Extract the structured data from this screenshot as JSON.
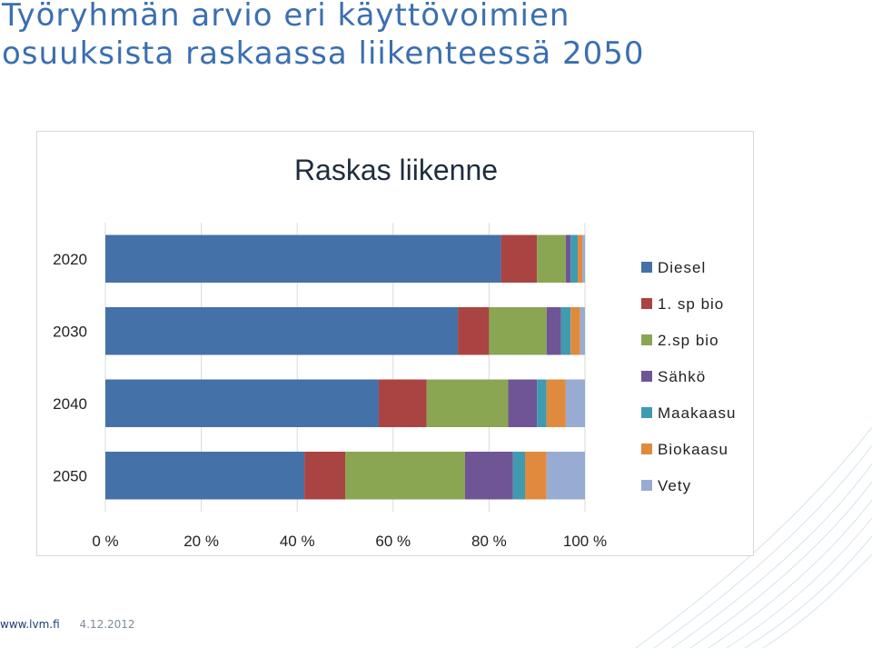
{
  "slide": {
    "title_line1": "Työryhmän arvio eri käyttövoimien",
    "title_line2": "osuuksista raskaassa liikenteessä 2050",
    "title_color": "#3b6fb0"
  },
  "footer": {
    "url": "www.lvm.fi",
    "date": "4.12.2012"
  },
  "chart_data": {
    "type": "bar",
    "orientation": "horizontal",
    "stacked": "percent",
    "title": "Raskas liikenne",
    "categories": [
      "2020",
      "2030",
      "2040",
      "2050"
    ],
    "series": [
      {
        "name": "Diesel",
        "color": "#4471a8",
        "values": [
          82.5,
          73.5,
          57.0,
          41.5
        ]
      },
      {
        "name": "1. sp bio",
        "color": "#a94442",
        "values": [
          7.5,
          6.5,
          10.0,
          8.5
        ]
      },
      {
        "name": "2.sp bio",
        "color": "#8aa653",
        "values": [
          6.0,
          12.0,
          17.0,
          25.0
        ]
      },
      {
        "name": "Sähkö",
        "color": "#6f5595",
        "values": [
          1.0,
          3.0,
          6.0,
          10.0
        ]
      },
      {
        "name": "Maakaasu",
        "color": "#3f9bb0",
        "values": [
          1.5,
          2.0,
          2.0,
          2.5
        ]
      },
      {
        "name": "Biokaasu",
        "color": "#e08a3e",
        "values": [
          1.0,
          2.0,
          4.0,
          4.5
        ]
      },
      {
        "name": "Vety",
        "color": "#97abd3",
        "values": [
          0.5,
          1.0,
          4.0,
          8.0
        ]
      }
    ],
    "xlim": [
      0,
      100
    ],
    "x_ticks": [
      "0 %",
      "20 %",
      "40 %",
      "60 %",
      "80 %",
      "100 %"
    ],
    "legend": "right",
    "grid": true
  }
}
